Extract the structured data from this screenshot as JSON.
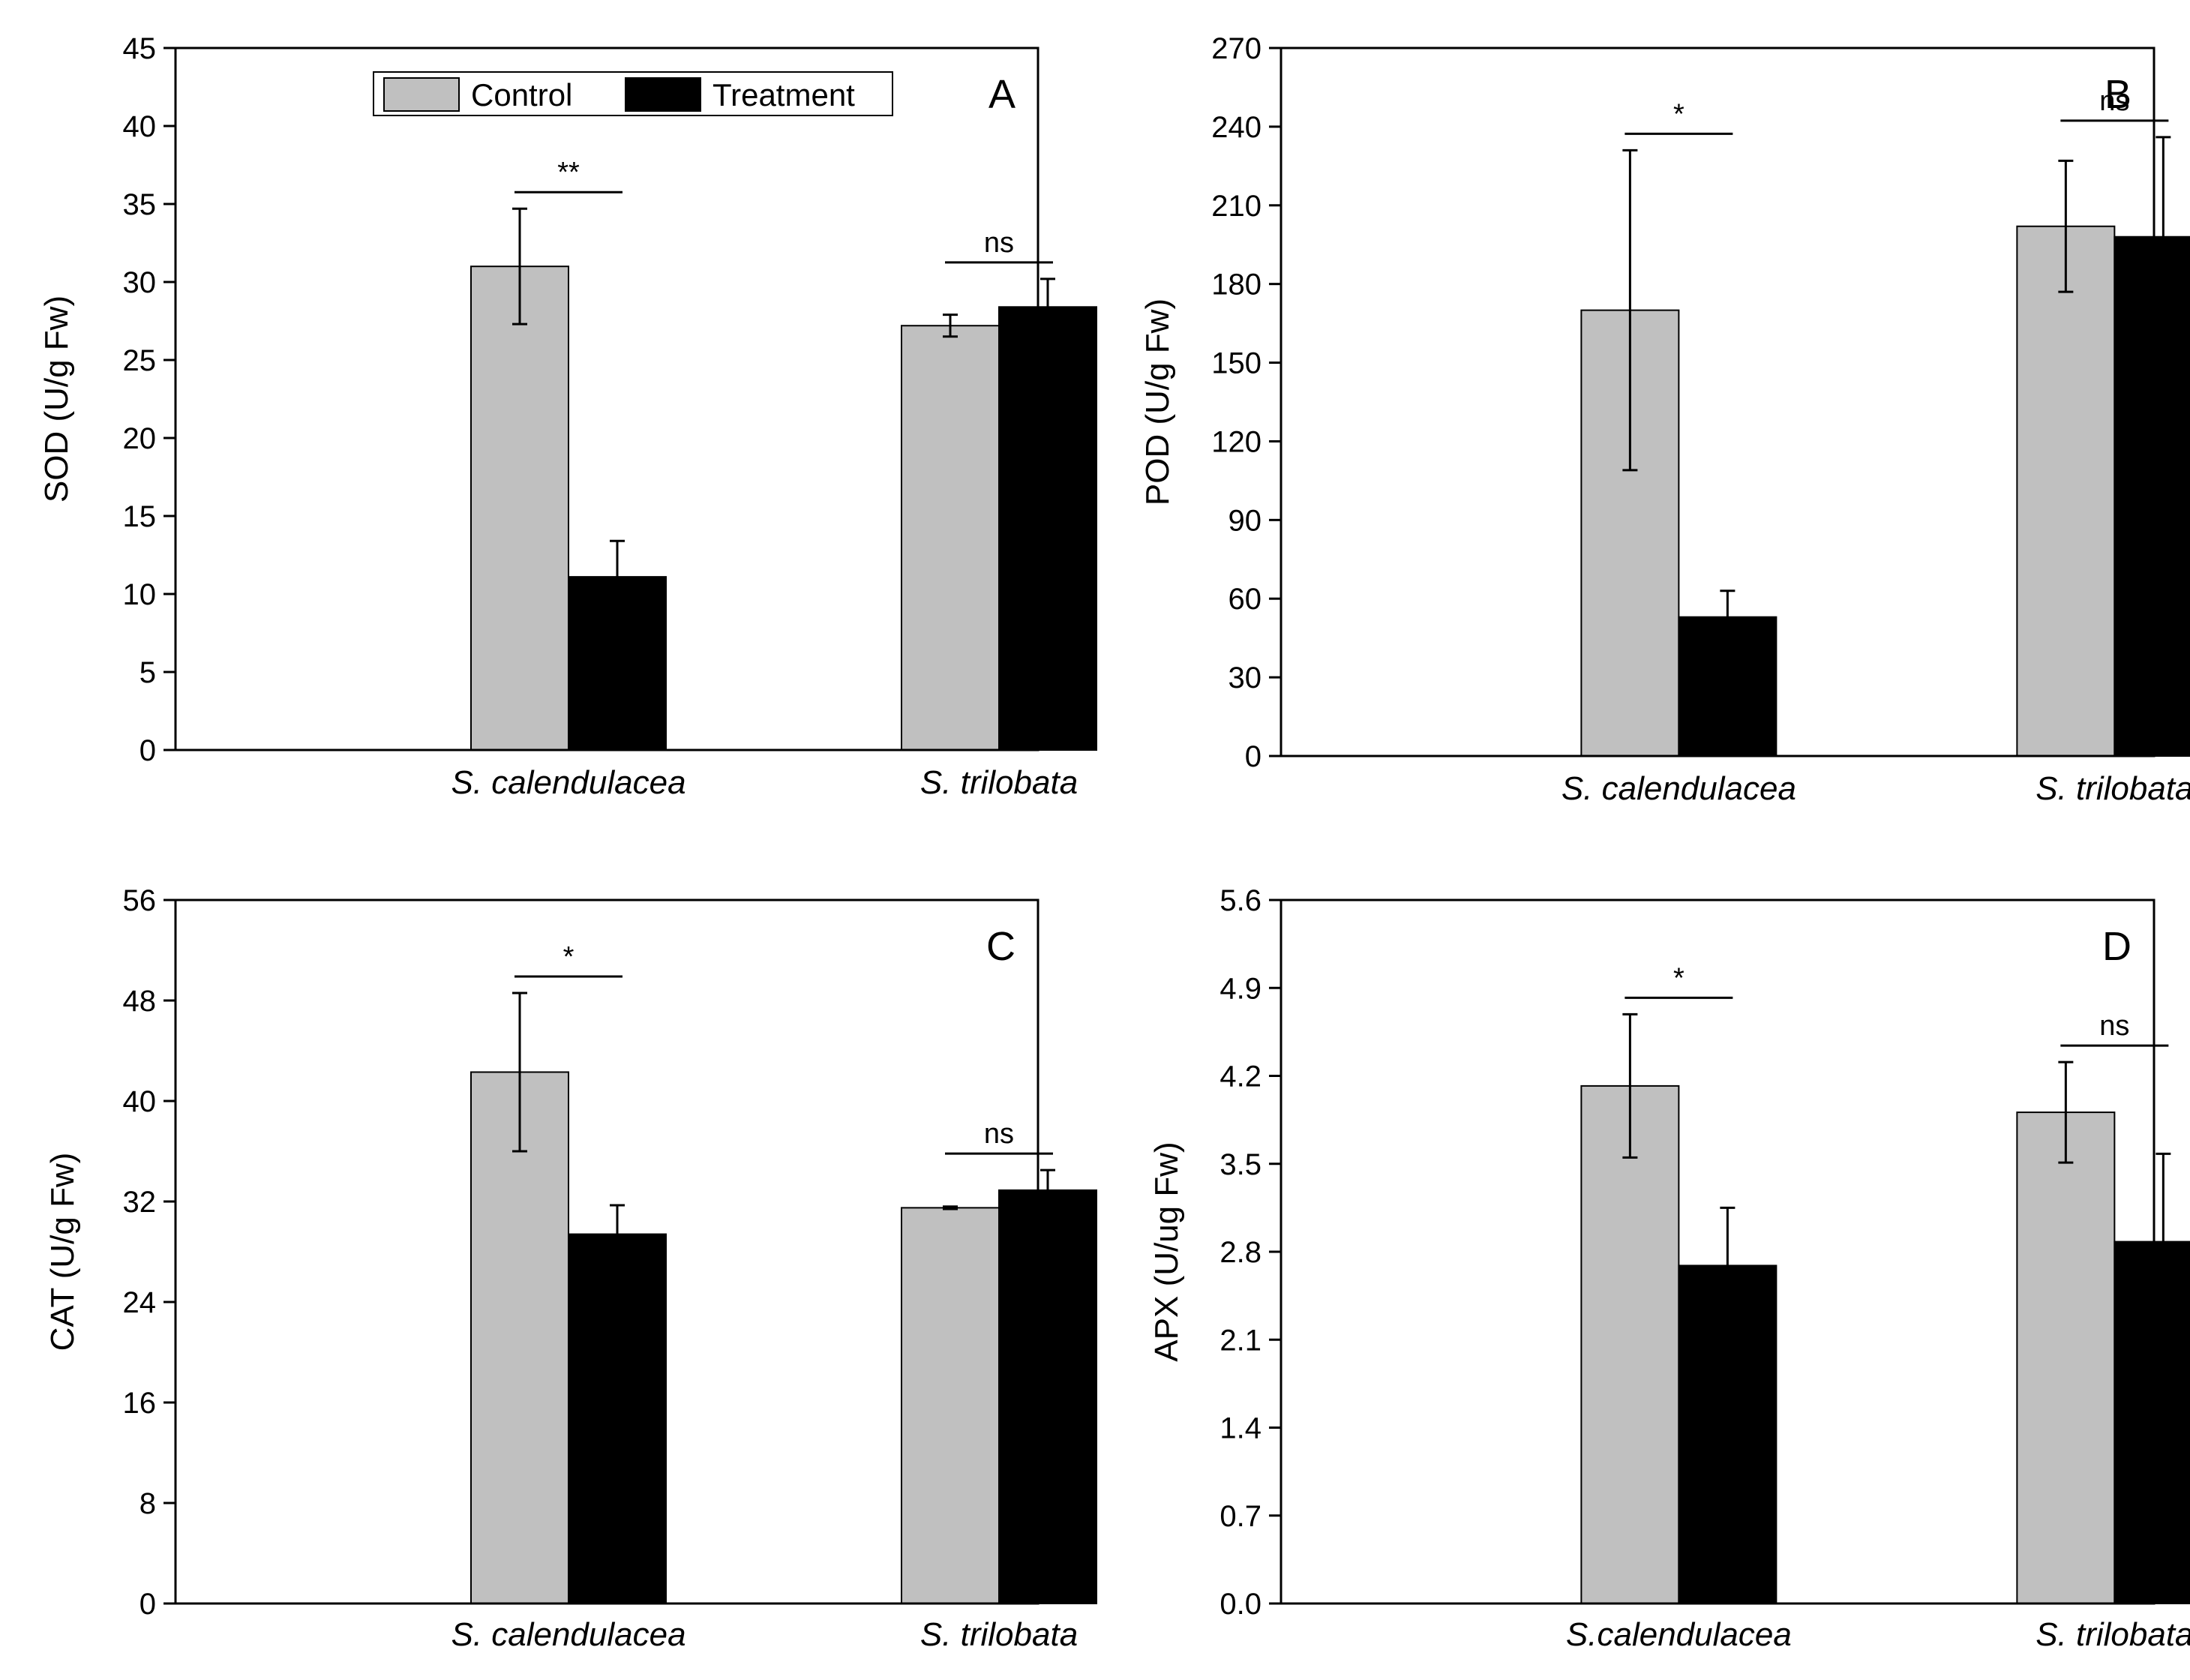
{
  "legend": {
    "control": "Control",
    "treatment": "Treatment"
  },
  "colors": {
    "control": "#c0c0c0",
    "treatment": "#000000"
  },
  "chart_data": [
    {
      "type": "bar",
      "panel": "A",
      "ylabel": "SOD (U/g Fw)",
      "ylim": [
        0,
        45
      ],
      "yticks": [
        "0",
        "5",
        "10",
        "15",
        "20",
        "25",
        "30",
        "35",
        "40",
        "45"
      ],
      "categories": [
        "S. calendulacea",
        "S. trilobata"
      ],
      "series": [
        {
          "name": "Control",
          "values": [
            31.0,
            27.2
          ],
          "errors": [
            3.7,
            0.7
          ]
        },
        {
          "name": "Treatment",
          "values": [
            11.1,
            28.4
          ],
          "errors": [
            2.3,
            1.8
          ]
        }
      ],
      "significance": [
        "**",
        "ns"
      ],
      "legend_position": "top-center"
    },
    {
      "type": "bar",
      "panel": "B",
      "ylabel": "POD (U/g Fw)",
      "ylim": [
        0,
        270
      ],
      "yticks": [
        "0",
        "30",
        "60",
        "90",
        "120",
        "150",
        "180",
        "210",
        "240",
        "270"
      ],
      "categories": [
        "S. calendulacea",
        "S. trilobata"
      ],
      "series": [
        {
          "name": "Control",
          "values": [
            170,
            202
          ],
          "errors": [
            61,
            25
          ]
        },
        {
          "name": "Treatment",
          "values": [
            53,
            198
          ],
          "errors": [
            10,
            38
          ]
        }
      ],
      "significance": [
        "*",
        "ns"
      ]
    },
    {
      "type": "bar",
      "panel": "C",
      "ylabel": "CAT (U/g Fw)",
      "ylim": [
        0,
        56
      ],
      "yticks": [
        "0",
        "8",
        "16",
        "24",
        "32",
        "40",
        "48",
        "56"
      ],
      "categories": [
        "S. calendulacea",
        "S. trilobata"
      ],
      "series": [
        {
          "name": "Control",
          "values": [
            42.3,
            31.5
          ],
          "errors": [
            6.3,
            0.1
          ]
        },
        {
          "name": "Treatment",
          "values": [
            29.4,
            32.9
          ],
          "errors": [
            2.3,
            1.6
          ]
        }
      ],
      "significance": [
        "*",
        "ns"
      ]
    },
    {
      "type": "bar",
      "panel": "D",
      "ylabel": "APX (U/ug Fw)",
      "ylim": [
        0,
        5.6
      ],
      "yticks": [
        "0.0",
        "0.7",
        "1.4",
        "2.1",
        "2.8",
        "3.5",
        "4.2",
        "4.9",
        "5.6"
      ],
      "categories": [
        "S.calendulacea",
        "S. trilobata"
      ],
      "series": [
        {
          "name": "Control",
          "values": [
            4.12,
            3.91
          ],
          "errors": [
            0.57,
            0.4
          ]
        },
        {
          "name": "Treatment",
          "values": [
            2.69,
            2.88
          ],
          "errors": [
            0.46,
            0.7
          ]
        }
      ],
      "significance": [
        "*",
        "ns"
      ]
    }
  ]
}
